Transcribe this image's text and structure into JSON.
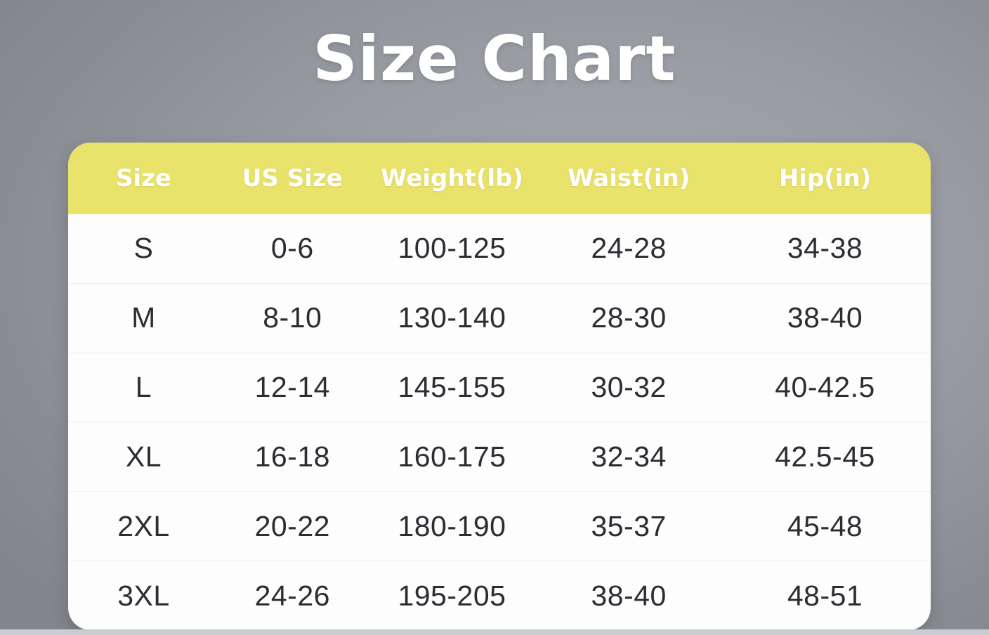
{
  "title": "Size Chart",
  "colors": {
    "background_dark": "#82858c",
    "background_light": "#a6a9af",
    "header_bg": "#e9e26b",
    "header_text": "#ffffff",
    "body_bg": "#fdfdfd",
    "cell_text": "#2b2d33",
    "row_divider": "#efefee",
    "bottom_strip": "#c9cdd3"
  },
  "chart_data": {
    "type": "table",
    "title": "Size Chart",
    "columns": [
      "Size",
      "US Size",
      "Weight(lb)",
      "Waist(in)",
      "Hip(in)"
    ],
    "rows": [
      [
        "S",
        "0-6",
        "100-125",
        "24-28",
        "34-38"
      ],
      [
        "M",
        "8-10",
        "130-140",
        "28-30",
        "38-40"
      ],
      [
        "L",
        "12-14",
        "145-155",
        "30-32",
        "40-42.5"
      ],
      [
        "XL",
        "16-18",
        "160-175",
        "32-34",
        "42.5-45"
      ],
      [
        "2XL",
        "20-22",
        "180-190",
        "35-37",
        "45-48"
      ],
      [
        "3XL",
        "24-26",
        "195-205",
        "38-40",
        "48-51"
      ]
    ],
    "layout": {
      "legend": "none",
      "grid": "horizontal-row-dividers",
      "header_position": "top"
    }
  }
}
